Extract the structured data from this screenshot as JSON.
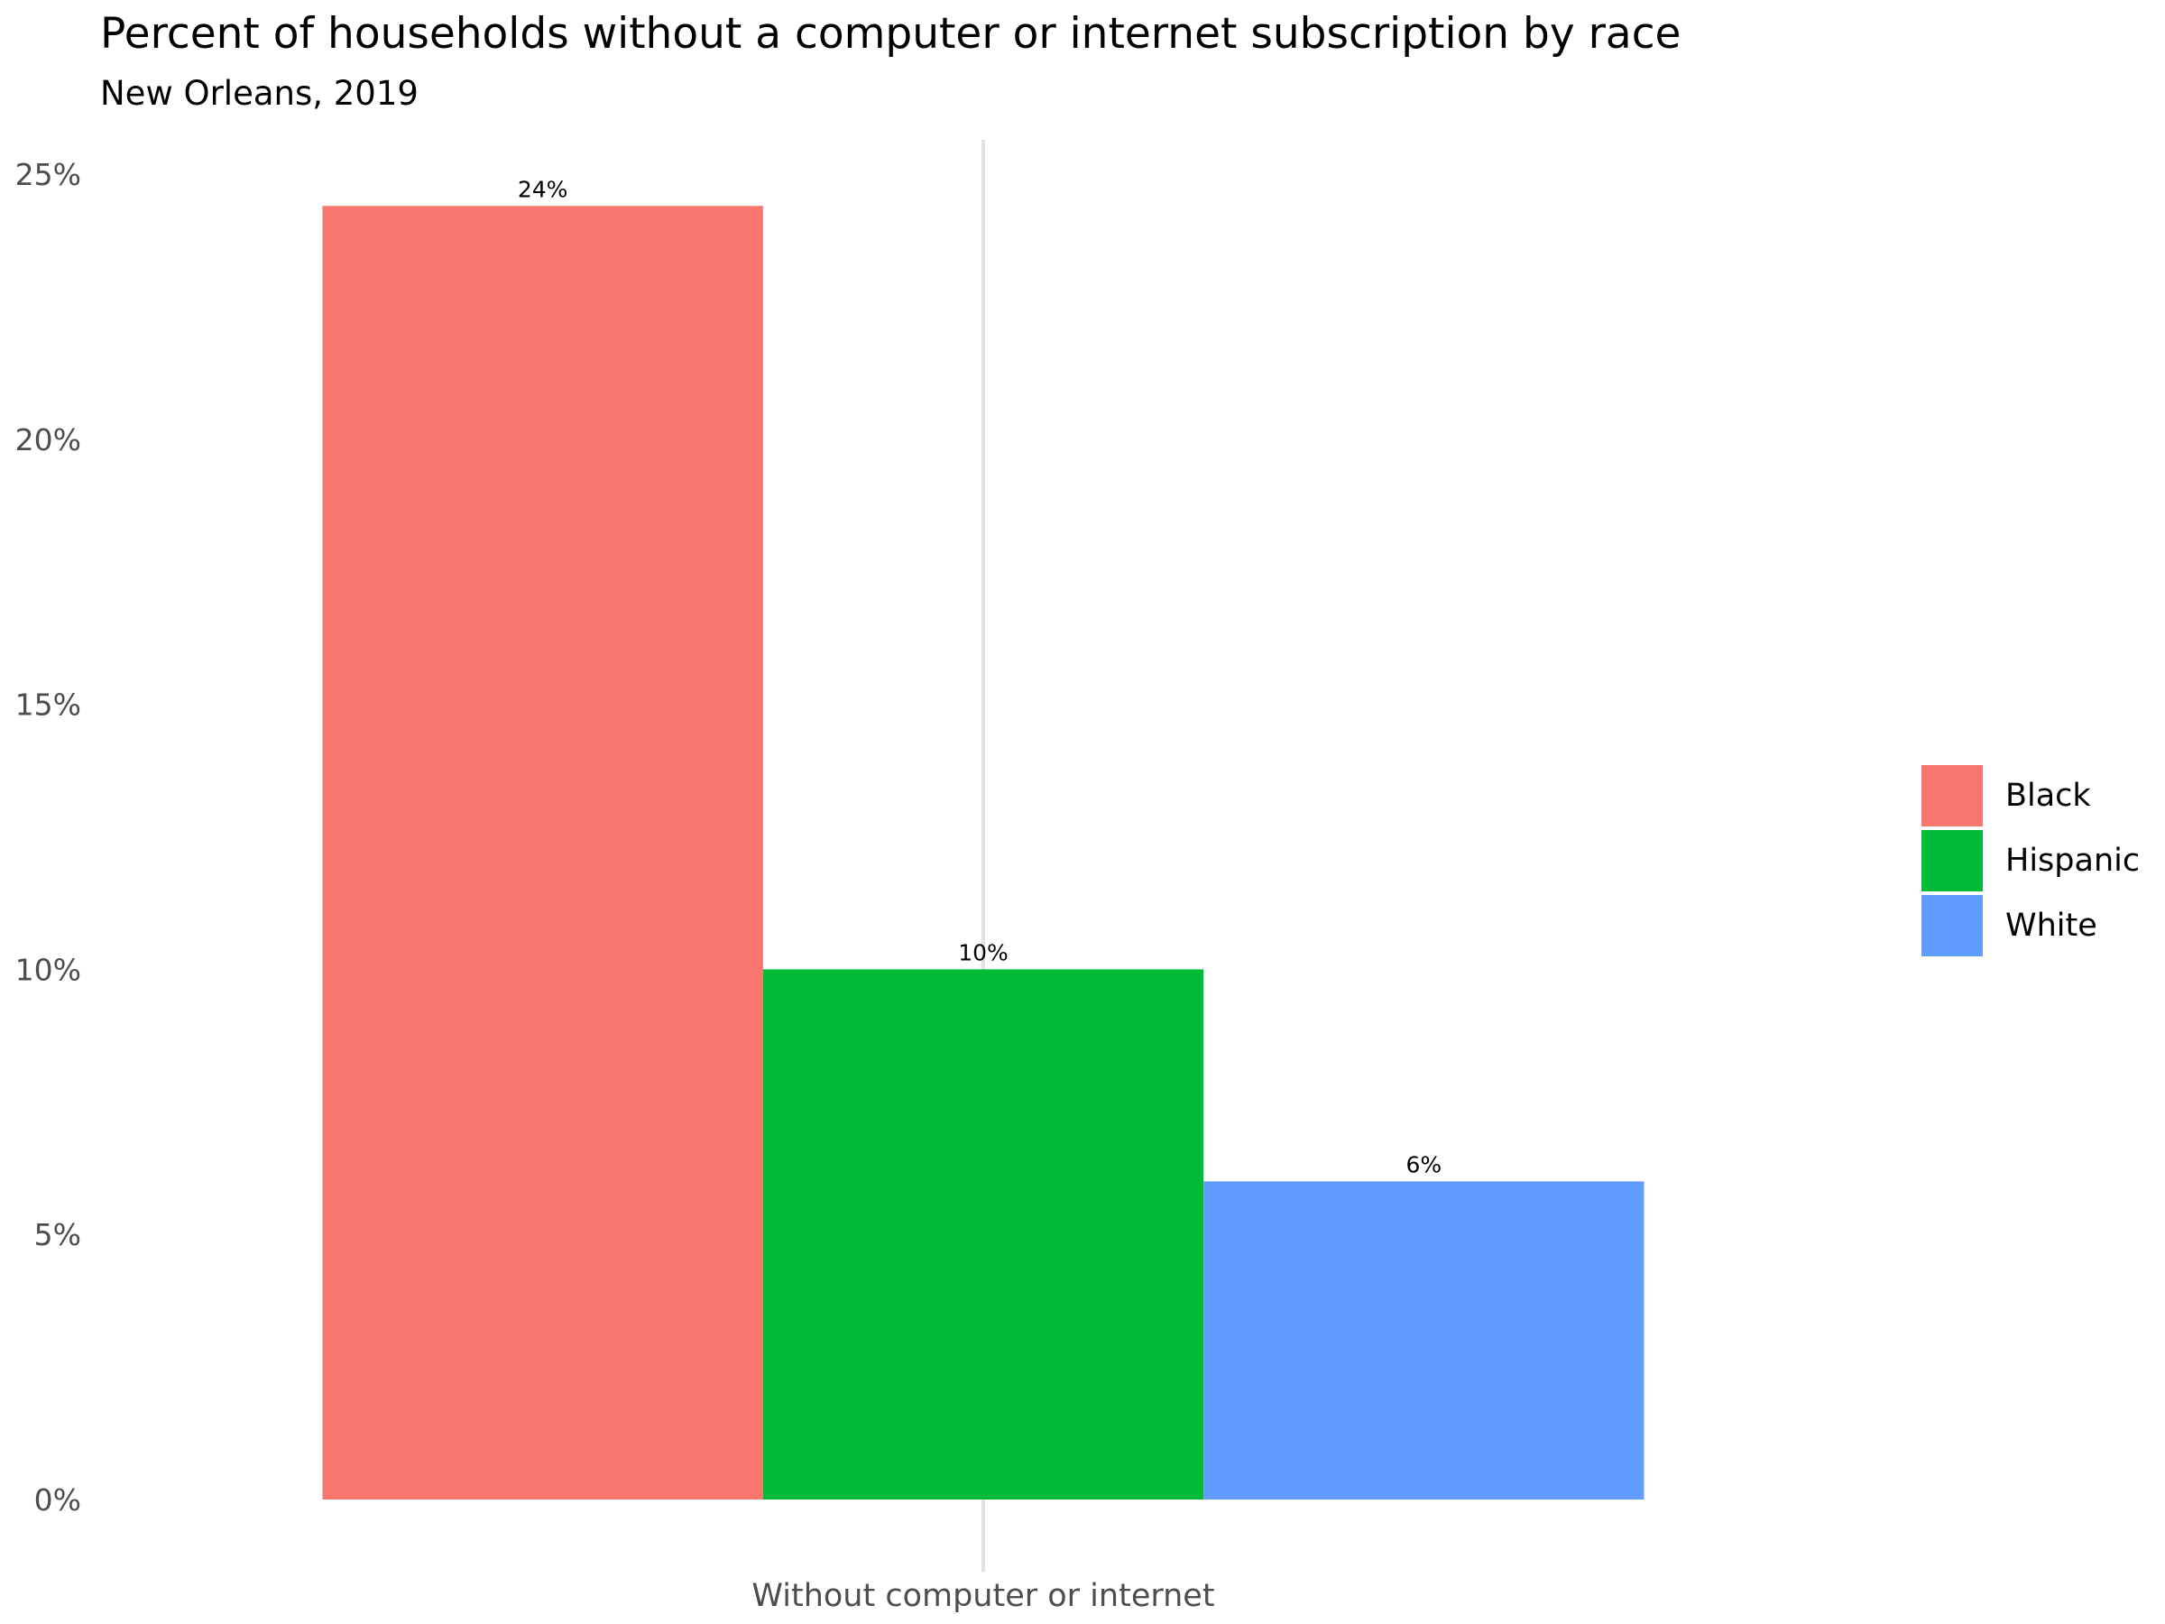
{
  "chart_data": {
    "type": "bar",
    "title": "Percent of households without a computer or internet subscription by race",
    "subtitle": "New Orleans, 2019",
    "xlabel": "",
    "ylabel": "",
    "categories": [
      "Without computer or internet"
    ],
    "series": [
      {
        "name": "Black",
        "values": [
          24.4
        ],
        "label": "24%",
        "color": "#F8766D"
      },
      {
        "name": "Hispanic",
        "values": [
          10.0
        ],
        "label": "10%",
        "color": "#00BA38"
      },
      {
        "name": "White",
        "values": [
          6.0
        ],
        "label": "6%",
        "color": "#619CFF"
      }
    ],
    "ylim": [
      0,
      25
    ],
    "yticks": [
      0,
      5,
      10,
      15,
      20,
      25
    ],
    "ytick_labels": [
      "0%",
      "5%",
      "10%",
      "15%",
      "20%",
      "25%"
    ],
    "grid": false,
    "legend": "right"
  }
}
